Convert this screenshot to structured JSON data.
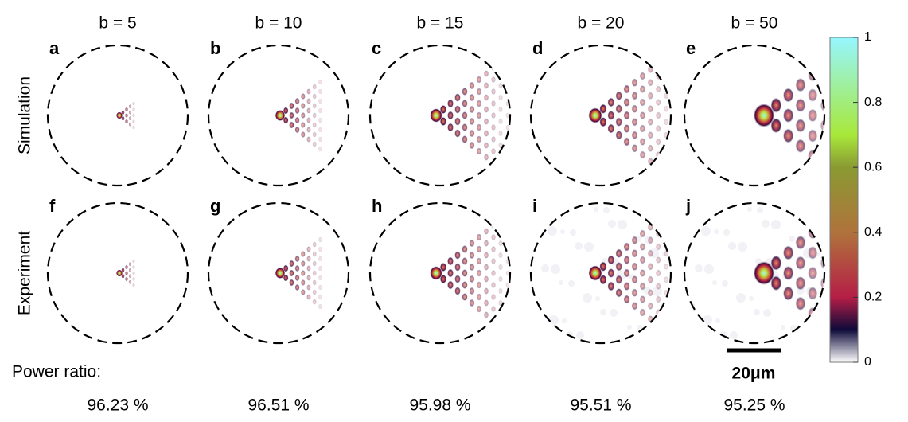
{
  "figure": {
    "columns": [
      "b = 5",
      "b = 10",
      "b = 15",
      "b = 20",
      "b = 50"
    ],
    "rows": [
      "Simulation",
      "Experiment"
    ],
    "panel_letters": [
      [
        "a",
        "b",
        "c",
        "d",
        "e"
      ],
      [
        "f",
        "g",
        "h",
        "i",
        "j"
      ]
    ],
    "power_ratio_label": "Power ratio:",
    "power_ratios": [
      "96.23 %",
      "96.51 %",
      "95.98 %",
      "95.51 %",
      "95.25 %"
    ],
    "scale_bar": "20μm",
    "colorbar": {
      "lim": [
        0,
        1
      ],
      "ticks": [
        0,
        0.2,
        0.4,
        0.6,
        0.8,
        1
      ]
    }
  }
}
